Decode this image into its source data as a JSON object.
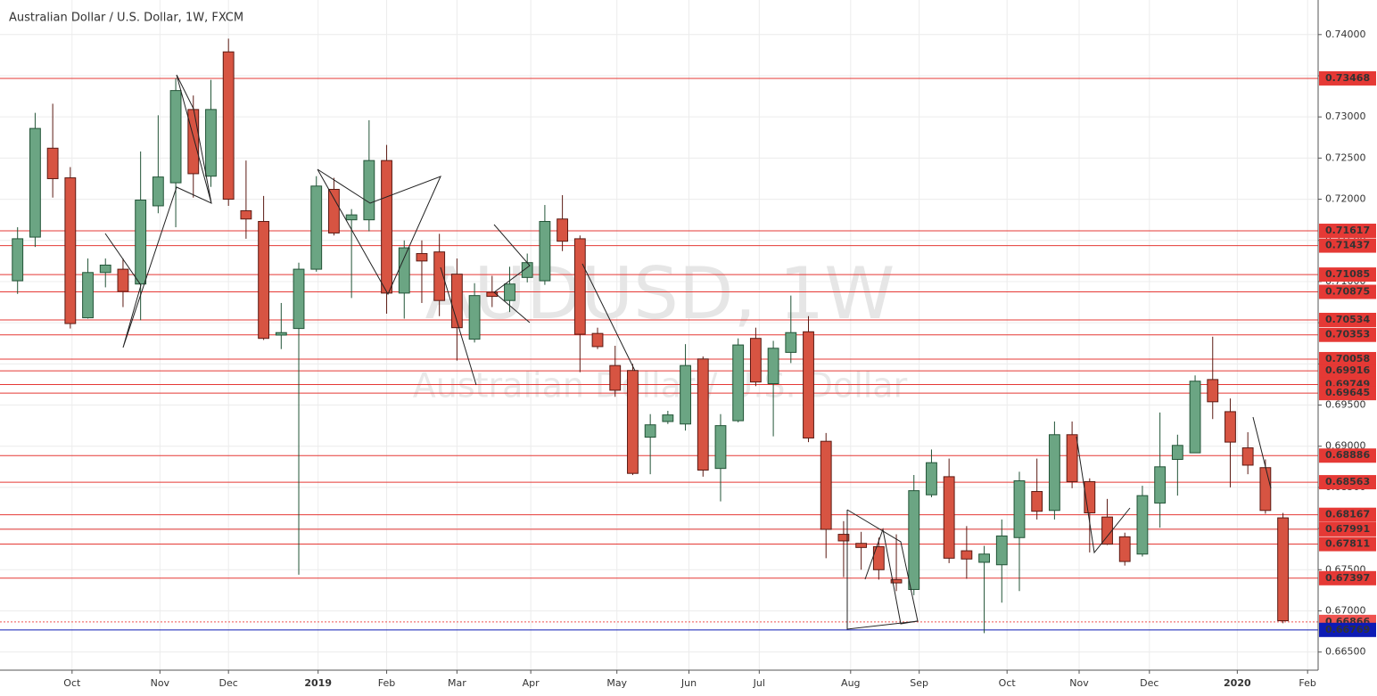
{
  "chart_data": {
    "type": "candlestick",
    "title": "Australian Dollar / U.S. Dollar, 1W, FXCM",
    "watermark": "AUDUSD, 1W",
    "watermark_subtitle": "Australian Dollar / U.S. Dollar",
    "up_color": "#6ba583",
    "down_color": "#d75442",
    "xlim": [
      -1,
      74
    ],
    "xticks": [
      {
        "value": 3.1,
        "label": "Oct"
      },
      {
        "value": 8.1,
        "label": "Nov"
      },
      {
        "value": 12.0,
        "label": "Dec"
      },
      {
        "value": 17.1,
        "label": "2019"
      },
      {
        "value": 21.0,
        "label": "Feb"
      },
      {
        "value": 25.0,
        "label": "Mar"
      },
      {
        "value": 29.2,
        "label": "Apr"
      },
      {
        "value": 34.1,
        "label": "May"
      },
      {
        "value": 38.2,
        "label": "Jun"
      },
      {
        "value": 42.2,
        "label": "Jul"
      },
      {
        "value": 47.4,
        "label": "Aug"
      },
      {
        "value": 51.3,
        "label": "Sep"
      },
      {
        "value": 56.3,
        "label": "Oct"
      },
      {
        "value": 60.4,
        "label": "Nov"
      },
      {
        "value": 64.4,
        "label": "Dec"
      },
      {
        "value": 69.4,
        "label": "2020"
      },
      {
        "value": 73.4,
        "label": "Feb"
      }
    ],
    "ylim": [
      0.6628,
      0.7442
    ],
    "yticks": [
      {
        "value": 0.665,
        "label": "0.66500"
      },
      {
        "value": 0.67,
        "label": "0.67000"
      },
      {
        "value": 0.675,
        "label": "0.67500"
      },
      {
        "value": 0.68,
        "label": "0.68000"
      },
      {
        "value": 0.685,
        "label": "0.68500"
      },
      {
        "value": 0.69,
        "label": "0.69000"
      },
      {
        "value": 0.695,
        "label": "0.69500"
      },
      {
        "value": 0.7,
        "label": "0.70000"
      },
      {
        "value": 0.705,
        "label": "0.70500"
      },
      {
        "value": 0.71,
        "label": "0.71000"
      },
      {
        "value": 0.715,
        "label": "0.71500"
      },
      {
        "value": 0.72,
        "label": "0.72000"
      },
      {
        "value": 0.725,
        "label": "0.72500"
      },
      {
        "value": 0.73,
        "label": "0.73000"
      },
      {
        "value": 0.735,
        "label": "0.73500"
      },
      {
        "value": 0.74,
        "label": "0.74000"
      }
    ],
    "grid": true,
    "level_color": "#e53935",
    "levels": [
      {
        "value": 0.73468,
        "label": "0.73468"
      },
      {
        "value": 0.71617,
        "label": "0.71617"
      },
      {
        "value": 0.71437,
        "label": "0.71437"
      },
      {
        "value": 0.71085,
        "label": "0.71085"
      },
      {
        "value": 0.70875,
        "label": "0.70875"
      },
      {
        "value": 0.70534,
        "label": "0.70534"
      },
      {
        "value": 0.70353,
        "label": "0.70353"
      },
      {
        "value": 0.70058,
        "label": "0.70058"
      },
      {
        "value": 0.69916,
        "label": "0.69916"
      },
      {
        "value": 0.69749,
        "label": "0.69749"
      },
      {
        "value": 0.69645,
        "label": "0.69645"
      },
      {
        "value": 0.68886,
        "label": "0.68886"
      },
      {
        "value": 0.68563,
        "label": "0.68563"
      },
      {
        "value": 0.68167,
        "label": "0.68167"
      },
      {
        "value": 0.67991,
        "label": "0.67991"
      },
      {
        "value": 0.67811,
        "label": "0.67811"
      },
      {
        "value": 0.67397,
        "label": "0.67397"
      }
    ],
    "price_line": {
      "value": 0.66866,
      "label": "0.66866",
      "color": "#ef5350"
    },
    "support_line": {
      "value": 0.66769,
      "label": "0.66769",
      "color": "#0d1bb5"
    },
    "open": [
      0.7101,
      0.7154,
      0.7262,
      0.7226,
      0.7056,
      0.7111,
      0.7115,
      0.7097,
      0.7192,
      0.722,
      0.7309,
      0.7228,
      0.7379,
      0.7186,
      0.7173,
      0.7035,
      0.7043,
      0.7115,
      0.7212,
      0.7175,
      0.7175,
      0.7247,
      0.7086,
      0.7134,
      0.7136,
      0.7109,
      0.703,
      0.7087,
      0.7077,
      0.7105,
      0.7101,
      0.7176,
      0.7152,
      0.7037,
      0.6998,
      0.6992,
      0.6911,
      0.693,
      0.6927,
      0.7006,
      0.6873,
      0.6931,
      0.7031,
      0.6976,
      0.7014,
      0.7039,
      0.6906,
      0.6793,
      0.6782,
      0.6778,
      0.6738,
      0.6726,
      0.6841,
      0.6863,
      0.6773,
      0.6759,
      0.6756,
      0.6789,
      0.6845,
      0.6822,
      0.6914,
      0.6857,
      0.6814,
      0.679,
      0.6769,
      0.6831,
      0.6884,
      0.6892,
      0.6981,
      0.6942,
      0.6898,
      0.6874,
      0.6813
    ],
    "high": [
      0.7166,
      0.7305,
      0.7316,
      0.7239,
      0.7128,
      0.7128,
      0.7128,
      0.7258,
      0.7302,
      0.7347,
      0.7326,
      0.7345,
      0.7395,
      0.7247,
      0.7204,
      0.7074,
      0.7123,
      0.7228,
      0.7226,
      0.7188,
      0.7296,
      0.7266,
      0.715,
      0.715,
      0.7158,
      0.7128,
      0.7098,
      0.7107,
      0.7118,
      0.7134,
      0.7193,
      0.7205,
      0.7156,
      0.7044,
      0.7022,
      0.7,
      0.6939,
      0.6943,
      0.7024,
      0.7009,
      0.6939,
      0.7031,
      0.7044,
      0.7028,
      0.7083,
      0.7058,
      0.6916,
      0.6809,
      0.6796,
      0.6789,
      0.6793,
      0.6865,
      0.6896,
      0.6885,
      0.6803,
      0.6779,
      0.6811,
      0.6869,
      0.6885,
      0.693,
      0.693,
      0.6861,
      0.6836,
      0.6795,
      0.6852,
      0.6941,
      0.6914,
      0.6986,
      0.7033,
      0.6958,
      0.6917,
      0.6884,
      0.6819
    ],
    "low": [
      0.7085,
      0.7142,
      0.7202,
      0.7043,
      0.7055,
      0.7093,
      0.7069,
      0.7053,
      0.7183,
      0.7166,
      0.7202,
      0.7215,
      0.7192,
      0.7152,
      0.7029,
      0.7018,
      0.6744,
      0.7112,
      0.7156,
      0.708,
      0.7161,
      0.7061,
      0.7055,
      0.7074,
      0.7058,
      0.7004,
      0.7026,
      0.7069,
      0.7063,
      0.7099,
      0.7096,
      0.7137,
      0.699,
      0.7018,
      0.696,
      0.6865,
      0.6866,
      0.6927,
      0.6919,
      0.6863,
      0.6833,
      0.6929,
      0.6973,
      0.6912,
      0.7001,
      0.6905,
      0.6764,
      0.6741,
      0.675,
      0.6738,
      0.6724,
      0.6719,
      0.6838,
      0.6758,
      0.6739,
      0.6673,
      0.671,
      0.6724,
      0.6811,
      0.6811,
      0.6849,
      0.6771,
      0.678,
      0.6755,
      0.6766,
      0.6801,
      0.684,
      0.6892,
      0.6933,
      0.685,
      0.6866,
      0.6818,
      0.6685
    ],
    "close": [
      0.7152,
      0.7286,
      0.7225,
      0.7049,
      0.7111,
      0.712,
      0.7088,
      0.7199,
      0.7227,
      0.7332,
      0.7231,
      0.7309,
      0.72,
      0.7176,
      0.7031,
      0.7038,
      0.7115,
      0.7216,
      0.7159,
      0.7181,
      0.7247,
      0.7086,
      0.7141,
      0.7125,
      0.7077,
      0.7044,
      0.7083,
      0.7082,
      0.7097,
      0.7123,
      0.7173,
      0.7149,
      0.7036,
      0.7021,
      0.6968,
      0.6867,
      0.6926,
      0.6938,
      0.6998,
      0.6871,
      0.6925,
      0.7023,
      0.6978,
      0.7019,
      0.7038,
      0.691,
      0.6799,
      0.6785,
      0.6777,
      0.675,
      0.6734,
      0.6846,
      0.688,
      0.6764,
      0.6763,
      0.6769,
      0.6791,
      0.6858,
      0.6821,
      0.6914,
      0.6857,
      0.6819,
      0.6781,
      0.676,
      0.684,
      0.6875,
      0.6901,
      0.6979,
      0.6954,
      0.6905,
      0.6877,
      0.6822,
      0.6688
    ]
  }
}
